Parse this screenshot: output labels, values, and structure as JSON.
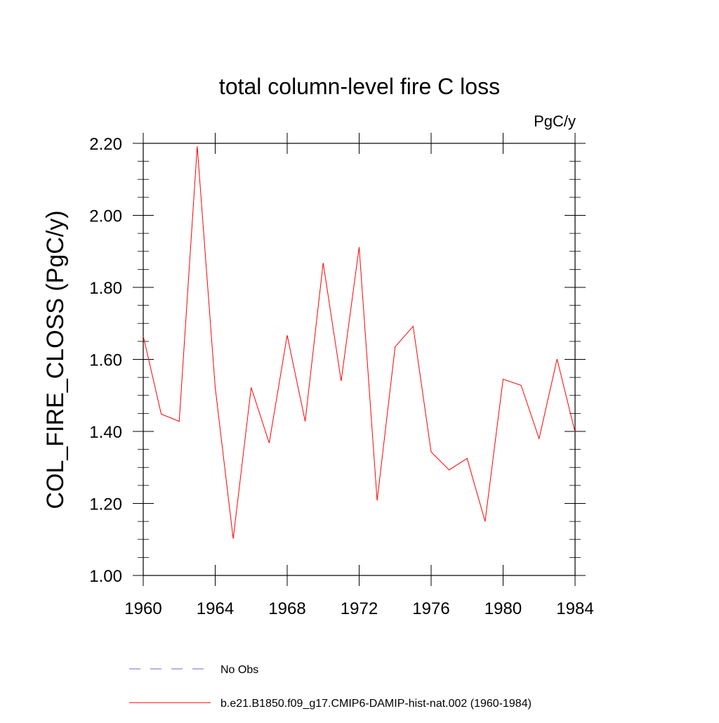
{
  "chart_data": {
    "type": "line",
    "title": "total column-level fire C loss",
    "units_label": "PgC/y",
    "xlabel": "",
    "ylabel": "COL_FIRE_CLOSS  (PgC/y)",
    "xlim": [
      1960,
      1984
    ],
    "ylim": [
      1.0,
      2.2
    ],
    "x_ticks": [
      1960,
      1964,
      1968,
      1972,
      1976,
      1980,
      1984
    ],
    "x_tick_labels": [
      "1960",
      "1964",
      "1968",
      "1972",
      "1976",
      "1980",
      "1984"
    ],
    "y_ticks": [
      1.0,
      1.2,
      1.4,
      1.6,
      1.8,
      2.0,
      2.2
    ],
    "y_tick_labels": [
      "1.00",
      "1.20",
      "1.40",
      "1.60",
      "1.80",
      "2.00",
      "2.20"
    ],
    "grid": false,
    "legend_position": "bottom",
    "x": [
      1960,
      1961,
      1962,
      1963,
      1964,
      1965,
      1966,
      1967,
      1968,
      1969,
      1970,
      1971,
      1972,
      1973,
      1974,
      1975,
      1976,
      1977,
      1978,
      1979,
      1980,
      1981,
      1982,
      1983,
      1984
    ],
    "series": [
      {
        "name": "b.e21.B1850.f09_g17.CMIP6-DAMIP-hist-nat.002 (1960-1984)",
        "color": "#ff0000",
        "style": "solid",
        "values": [
          1.665,
          1.448,
          1.428,
          2.192,
          1.522,
          1.102,
          1.522,
          1.368,
          1.667,
          1.428,
          1.868,
          1.54,
          1.912,
          1.208,
          1.635,
          1.692,
          1.343,
          1.293,
          1.325,
          1.15,
          1.545,
          1.528,
          1.38,
          1.601,
          1.398
        ]
      }
    ],
    "legend": [
      {
        "label": "No Obs",
        "color": "#6a6acd",
        "style": "dashed"
      },
      {
        "label": "b.e21.B1850.f09_g17.CMIP6-DAMIP-hist-nat.002 (1960-1984)",
        "color": "#ff0000",
        "style": "solid"
      }
    ]
  }
}
